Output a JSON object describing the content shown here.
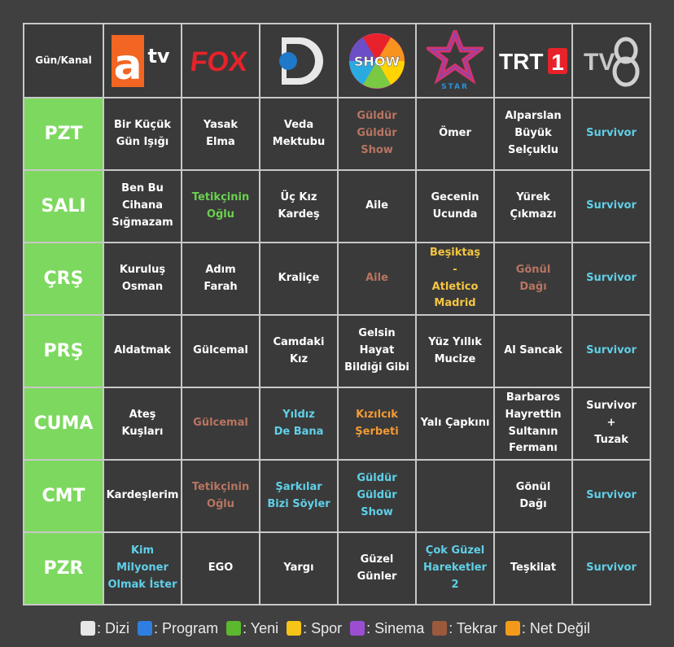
{
  "corner_label": "Gün/Kanal",
  "channels": [
    {
      "name": "atv"
    },
    {
      "name": "FOX"
    },
    {
      "name": "kanal-d"
    },
    {
      "name": "SHOW"
    },
    {
      "name": "STAR"
    },
    {
      "name": "TRT 1"
    },
    {
      "name": "TV8"
    }
  ],
  "colors": {
    "dizi": "#ffffff",
    "program": "#5fd0e8",
    "yeni": "#6ad04f",
    "spor": "#f5c542",
    "sinema": "#9b4fd0",
    "tekrar": "#b87561",
    "net_degil": "#f39a34",
    "day_bg": "#7dd85f"
  },
  "days": [
    {
      "label": "PZT",
      "shows": [
        {
          "text": "Bir Küçük\nGün Işığı",
          "type": "dizi"
        },
        {
          "text": "Yasak\nElma",
          "type": "dizi"
        },
        {
          "text": "Veda\nMektubu",
          "type": "dizi"
        },
        {
          "text": "Güldür\nGüldür\nShow",
          "type": "tekrar"
        },
        {
          "text": "Ömer",
          "type": "dizi"
        },
        {
          "text": "Alparslan\nBüyük\nSelçuklu",
          "type": "dizi"
        },
        {
          "text": "Survivor",
          "type": "program"
        }
      ]
    },
    {
      "label": "SALI",
      "shows": [
        {
          "text": "Ben Bu\nCihana\nSığmazam",
          "type": "dizi"
        },
        {
          "text": "Tetikçinin\nOğlu",
          "type": "yeni"
        },
        {
          "text": "Üç Kız\nKardeş",
          "type": "dizi"
        },
        {
          "text": "Aile",
          "type": "dizi"
        },
        {
          "text": "Gecenin\nUcunda",
          "type": "dizi"
        },
        {
          "text": "Yürek\nÇıkmazı",
          "type": "dizi"
        },
        {
          "text": "Survivor",
          "type": "program"
        }
      ]
    },
    {
      "label": "ÇRŞ",
      "shows": [
        {
          "text": "Kuruluş\nOsman",
          "type": "dizi"
        },
        {
          "text": "Adım\nFarah",
          "type": "dizi"
        },
        {
          "text": "Kraliçe",
          "type": "dizi"
        },
        {
          "text": "Aile",
          "type": "tekrar"
        },
        {
          "text": "Beşiktaş\n-\nAtletico\nMadrid",
          "type": "spor"
        },
        {
          "text": "Gönül\nDağı",
          "type": "tekrar"
        },
        {
          "text": "Survivor",
          "type": "program"
        }
      ]
    },
    {
      "label": "PRŞ",
      "shows": [
        {
          "text": "Aldatmak",
          "type": "dizi"
        },
        {
          "text": "Gülcemal",
          "type": "dizi"
        },
        {
          "text": "Camdaki\nKız",
          "type": "dizi"
        },
        {
          "text": "Gelsin Hayat\nBildiği Gibi",
          "type": "dizi"
        },
        {
          "text": "Yüz Yıllık\nMucize",
          "type": "dizi"
        },
        {
          "text": "Al Sancak",
          "type": "dizi"
        },
        {
          "text": "Survivor",
          "type": "program"
        }
      ]
    },
    {
      "label": "CUMA",
      "shows": [
        {
          "text": "Ateş\nKuşları",
          "type": "dizi"
        },
        {
          "text": "Gülcemal",
          "type": "tekrar"
        },
        {
          "text": "Yıldız\nDe Bana",
          "type": "program"
        },
        {
          "text": "Kızılcık\nŞerbeti",
          "type": "net_degil"
        },
        {
          "text": "Yalı Çapkını",
          "type": "dizi"
        },
        {
          "text": "Barbaros\nHayrettin\nSultanın\nFermanı",
          "type": "dizi"
        },
        {
          "text": "Survivor\n+\nTuzak",
          "type": "dizi"
        }
      ]
    },
    {
      "label": "CMT",
      "shows": [
        {
          "text": "Kardeşlerim",
          "type": "dizi"
        },
        {
          "text": "Tetikçinin\nOğlu",
          "type": "tekrar"
        },
        {
          "text": "Şarkılar\nBizi Söyler",
          "type": "program"
        },
        {
          "text": "Güldür\nGüldür\nShow",
          "type": "program"
        },
        {
          "text": "",
          "type": "dizi"
        },
        {
          "text": "Gönül\nDağı",
          "type": "dizi"
        },
        {
          "text": "Survivor",
          "type": "program"
        }
      ]
    },
    {
      "label": "PZR",
      "shows": [
        {
          "text": "Kim Milyoner\nOlmak İster",
          "type": "program"
        },
        {
          "text": "EGO",
          "type": "dizi"
        },
        {
          "text": "Yargı",
          "type": "dizi"
        },
        {
          "text": "Güzel\nGünler",
          "type": "dizi"
        },
        {
          "text": "Çok Güzel\nHareketler 2",
          "type": "program"
        },
        {
          "text": "Teşkilat",
          "type": "dizi"
        },
        {
          "text": "Survivor",
          "type": "program"
        }
      ]
    }
  ],
  "legend": [
    {
      "key": "dizi",
      "label": ": Dizi",
      "color": "#e6e6e6"
    },
    {
      "key": "program",
      "label": ": Program",
      "color": "#2f7fe0"
    },
    {
      "key": "yeni",
      "label": ": Yeni",
      "color": "#5cb82f"
    },
    {
      "key": "spor",
      "label": ": Spor",
      "color": "#f5c518"
    },
    {
      "key": "sinema",
      "label": ": Sinema",
      "color": "#9b4fd0"
    },
    {
      "key": "tekrar",
      "label": ": Tekrar",
      "color": "#9c5a3c"
    },
    {
      "key": "net_degil",
      "label": ": Net Değil",
      "color": "#f39a1a"
    }
  ]
}
